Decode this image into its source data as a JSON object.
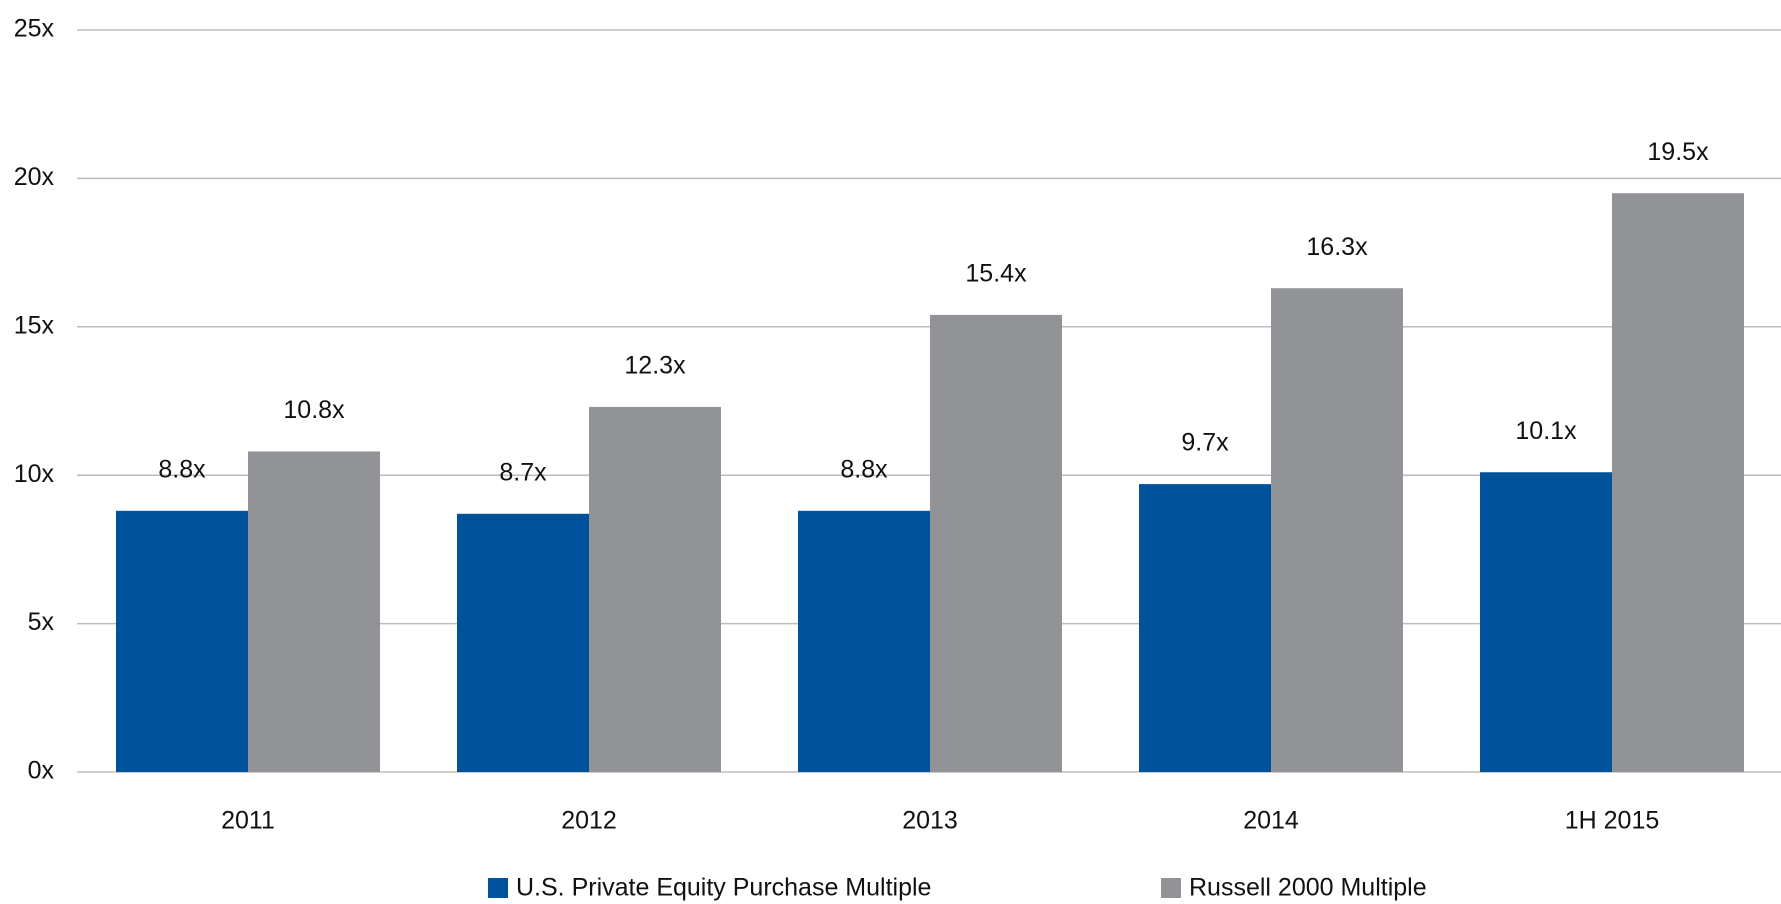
{
  "chart_data": {
    "type": "bar",
    "categories": [
      "2011",
      "2012",
      "2013",
      "2014",
      "1H 2015"
    ],
    "series": [
      {
        "name": "U.S. Private Equity Purchase Multiple",
        "color": "#00539b",
        "values": [
          8.8,
          8.7,
          8.8,
          9.7,
          10.1
        ],
        "value_labels": [
          "8.8x",
          "8.7x",
          "8.8x",
          "9.7x",
          "10.1x"
        ]
      },
      {
        "name": "Russell 2000 Multiple",
        "color": "#919396",
        "values": [
          10.8,
          12.3,
          15.4,
          16.3,
          19.5
        ],
        "value_labels": [
          "10.8x",
          "12.3x",
          "15.4x",
          "16.3x",
          "19.5x"
        ]
      }
    ],
    "ylim": [
      0,
      25
    ],
    "yticks": [
      {
        "value": 0,
        "label": "0x"
      },
      {
        "value": 5,
        "label": "5x"
      },
      {
        "value": 10,
        "label": "10x"
      },
      {
        "value": 15,
        "label": "15x"
      },
      {
        "value": 20,
        "label": "20x"
      },
      {
        "value": 25,
        "label": "25x"
      }
    ],
    "grid": true,
    "legend": "bottom"
  }
}
